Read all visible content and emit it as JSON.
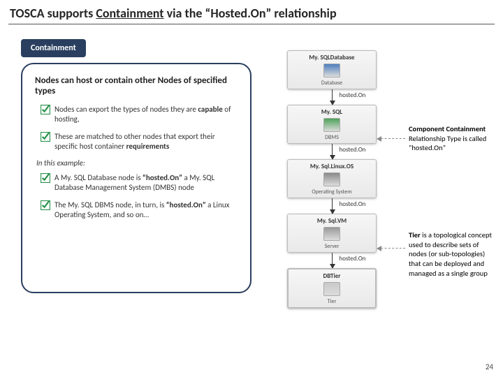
{
  "title_prefix": "TOSCA supports ",
  "title_underlined": "Containment",
  "title_suffix": " via the “Hosted.On” relationship",
  "pill_label": "Containment",
  "callout": {
    "subtitle_html": "Nodes can <b>host</b> or contain other Nodes of specified types",
    "bullets_a": [
      "Nodes can export the types of nodes they are <b>capable</b> of hosting,",
      "These are matched to other nodes that export their specific host container <b>requirements</b>"
    ],
    "lead": "In this example:",
    "bullets_b": [
      "A My. SQL Database node is <b>“hosted.On”</b> a My. SQL Database Management System (DMBS) node",
      "The My. SQL DBMS node, in turn, is <b>“hosted.On”</b> a Linux Operating System, and so on…"
    ]
  },
  "diagram": {
    "nodes": [
      {
        "title": "My. SQLDatabase",
        "sub": "Database",
        "icon_color": "#4f7fbf",
        "double_border": false
      },
      {
        "title": "My. SQL",
        "sub": "DBMS",
        "icon_color": "#4fa25a",
        "double_border": false
      },
      {
        "title": "My. Sql.Linux.OS",
        "sub": "Operating System",
        "icon_color": "#8a8a8a",
        "double_border": false
      },
      {
        "title": "My. Sql.VM",
        "sub": "Server",
        "icon_color": "#999999",
        "double_border": false
      },
      {
        "title": "DBTier",
        "sub": "Tier",
        "icon_color": "#c9c9c9",
        "double_border": true
      }
    ],
    "edge_label": "hosted.On"
  },
  "annotations": {
    "a1_html": "<b>Component Containment</b> Relationship Type is called “hosted.On”",
    "a2_html": "<b>Tier</b> is a topological concept used to describe sets of nodes (or sub-topologies) that can be deployed and managed as a single group"
  },
  "page_number": "24",
  "colors": {
    "navy": "#2a3f5f",
    "check_green": "#28924b",
    "dash": "#8a8a8a",
    "text": "#262626"
  }
}
